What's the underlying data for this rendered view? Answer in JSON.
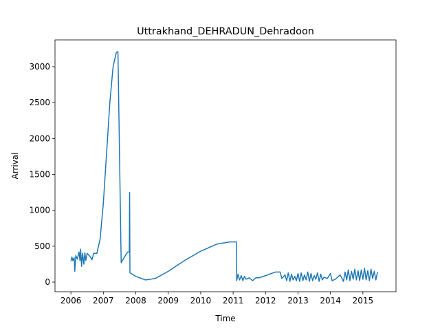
{
  "chart_data": {
    "type": "line",
    "title": "Uttrakhand_DEHRADUN_Dehradoon",
    "xlabel": "Time",
    "ylabel": "Arrival",
    "x": [
      2006.0,
      2006.03,
      2006.06,
      2006.1,
      2006.12,
      2006.15,
      2006.2,
      2006.25,
      2006.28,
      2006.3,
      2006.33,
      2006.36,
      2006.4,
      2006.43,
      2006.46,
      2006.5,
      2006.6,
      2006.65,
      2006.7,
      2006.8,
      2006.9,
      2007.0,
      2007.1,
      2007.2,
      2007.3,
      2007.4,
      2007.45,
      2007.55,
      2007.65,
      2007.75,
      2007.8,
      2007.81,
      2007.82,
      2008.0,
      2008.3,
      2008.6,
      2009.0,
      2009.5,
      2010.0,
      2010.5,
      2010.9,
      2011.1,
      2011.11,
      2011.15,
      2011.2,
      2011.25,
      2011.3,
      2011.35,
      2011.4,
      2011.5,
      2011.6,
      2011.7,
      2011.8,
      2012.0,
      2012.3,
      2012.45,
      2012.5,
      2012.6,
      2012.65,
      2012.7,
      2012.75,
      2012.8,
      2012.85,
      2012.9,
      2012.95,
      2013.0,
      2013.05,
      2013.1,
      2013.15,
      2013.2,
      2013.25,
      2013.3,
      2013.35,
      2013.4,
      2013.45,
      2013.5,
      2013.55,
      2013.6,
      2013.65,
      2013.7,
      2013.75,
      2013.8,
      2013.9,
      2014.0,
      2014.05,
      2014.15,
      2014.3,
      2014.4,
      2014.45,
      2014.5,
      2014.55,
      2014.6,
      2014.65,
      2014.7,
      2014.75,
      2014.8,
      2014.85,
      2014.9,
      2014.95,
      2015.0,
      2015.05,
      2015.1,
      2015.15,
      2015.2,
      2015.25,
      2015.3,
      2015.35,
      2015.4,
      2015.45
    ],
    "series": [
      {
        "color": "#1f77b4",
        "values": [
          290,
          350,
          300,
          340,
          150,
          370,
          320,
          420,
          300,
          460,
          220,
          400,
          250,
          410,
          300,
          400,
          350,
          310,
          400,
          400,
          600,
          1100,
          1800,
          2500,
          3000,
          3200,
          3210,
          270,
          350,
          420,
          420,
          1250,
          130,
          80,
          30,
          50,
          150,
          300,
          430,
          530,
          560,
          560,
          20,
          110,
          30,
          90,
          20,
          80,
          40,
          60,
          20,
          60,
          60,
          90,
          140,
          140,
          50,
          100,
          20,
          130,
          10,
          110,
          30,
          80,
          20,
          120,
          10,
          130,
          20,
          100,
          30,
          140,
          10,
          120,
          20,
          90,
          40,
          130,
          10,
          110,
          30,
          70,
          50,
          120,
          20,
          40,
          100,
          10,
          140,
          30,
          170,
          20,
          150,
          40,
          180,
          30,
          160,
          20,
          170,
          40,
          190,
          30,
          160,
          20,
          180,
          50,
          150,
          30,
          140
        ]
      }
    ],
    "xlim": [
      2005.51,
      2016.02
    ],
    "ylim": [
      -134,
      3374
    ],
    "xticks": [
      2006,
      2007,
      2008,
      2009,
      2010,
      2011,
      2012,
      2013,
      2014,
      2015
    ],
    "yticks": [
      0,
      500,
      1000,
      1500,
      2000,
      2500,
      3000
    ]
  }
}
